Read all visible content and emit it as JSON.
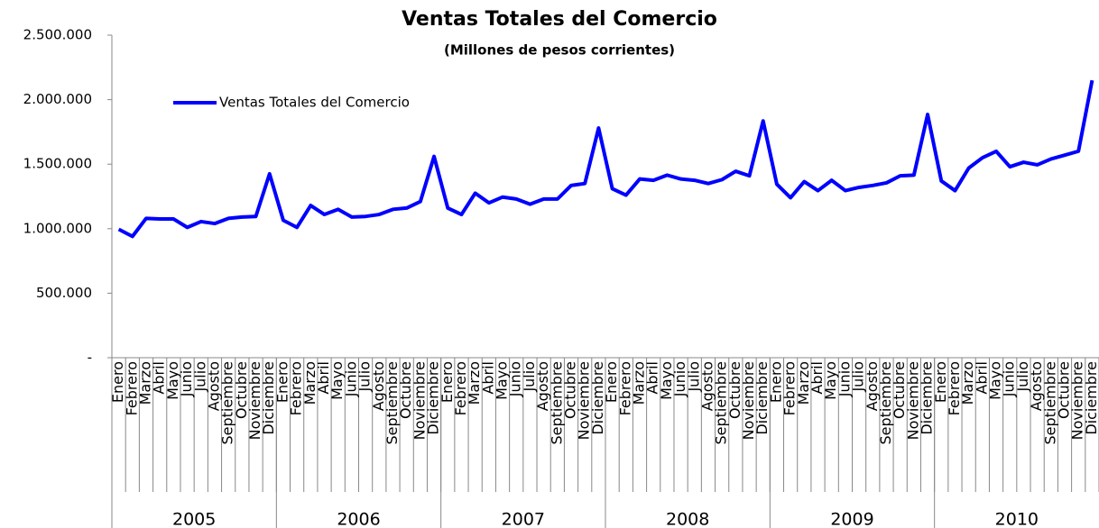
{
  "chart_data": {
    "type": "line",
    "title": "Ventas Totales del Comercio",
    "subtitle": "(Millones de pesos corrientes)",
    "categories": [
      "Enero",
      "Febrero",
      "Marzo",
      "Abril",
      "Mayo",
      "Junio",
      "Julio",
      "Agosto",
      "Septiembre",
      "Octubre",
      "Noviembre",
      "Diciembre",
      "Enero",
      "Febrero",
      "Marzo",
      "Abril",
      "Mayo",
      "Junio",
      "Julio",
      "Agosto",
      "Septiembre",
      "Octubre",
      "Noviembre",
      "Diciembre",
      "Enero",
      "Febrero",
      "Marzo",
      "Abril",
      "Mayo",
      "Junio",
      "Julio",
      "Agosto",
      "Septiembre",
      "Octubre",
      "Noviembre",
      "Diciembre",
      "Enero",
      "Febrero",
      "Marzo",
      "Abril",
      "Mayo",
      "Junio",
      "Julio",
      "Agosto",
      "Septiembre",
      "Octubre",
      "Noviembre",
      "Diciembre",
      "Enero",
      "Febrero",
      "Marzo",
      "Abril",
      "Mayo",
      "Junio",
      "Julio",
      "Agosto",
      "Septiembre",
      "Octubre",
      "Noviembre",
      "Diciembre",
      "Enero",
      "Febrero",
      "Marzo",
      "Abril",
      "Mayo",
      "Junio",
      "Julio",
      "Agosto",
      "Septiembre",
      "Octubre",
      "Noviembre",
      "Diciembre"
    ],
    "year_groups": [
      "2005",
      "2006",
      "2007",
      "2008",
      "2009",
      "2010"
    ],
    "series": [
      {
        "name": "Ventas Totales del Comercio",
        "color": "#0000ff",
        "values": [
          995000,
          940000,
          1080000,
          1075000,
          1075000,
          1010000,
          1055000,
          1040000,
          1080000,
          1090000,
          1095000,
          1425000,
          1065000,
          1010000,
          1180000,
          1110000,
          1150000,
          1090000,
          1095000,
          1110000,
          1150000,
          1160000,
          1210000,
          1560000,
          1160000,
          1110000,
          1275000,
          1200000,
          1245000,
          1230000,
          1190000,
          1230000,
          1230000,
          1335000,
          1350000,
          1780000,
          1310000,
          1260000,
          1385000,
          1375000,
          1415000,
          1385000,
          1375000,
          1350000,
          1380000,
          1445000,
          1410000,
          1835000,
          1345000,
          1240000,
          1365000,
          1295000,
          1375000,
          1295000,
          1320000,
          1335000,
          1355000,
          1410000,
          1415000,
          1885000,
          1370000,
          1295000,
          1470000,
          1550000,
          1600000,
          1480000,
          1515000,
          1495000,
          1540000,
          1570000,
          1600000,
          2150000
        ]
      }
    ],
    "ylim": [
      0,
      2500000
    ],
    "yticks": [
      {
        "value": 0,
        "label": "-"
      },
      {
        "value": 500000,
        "label": "500.000"
      },
      {
        "value": 1000000,
        "label": "1.000.000"
      },
      {
        "value": 1500000,
        "label": "1.500.000"
      },
      {
        "value": 2000000,
        "label": "2.000.000"
      },
      {
        "value": 2500000,
        "label": "2.500.000"
      }
    ],
    "grid": false,
    "legend": "top-left"
  }
}
